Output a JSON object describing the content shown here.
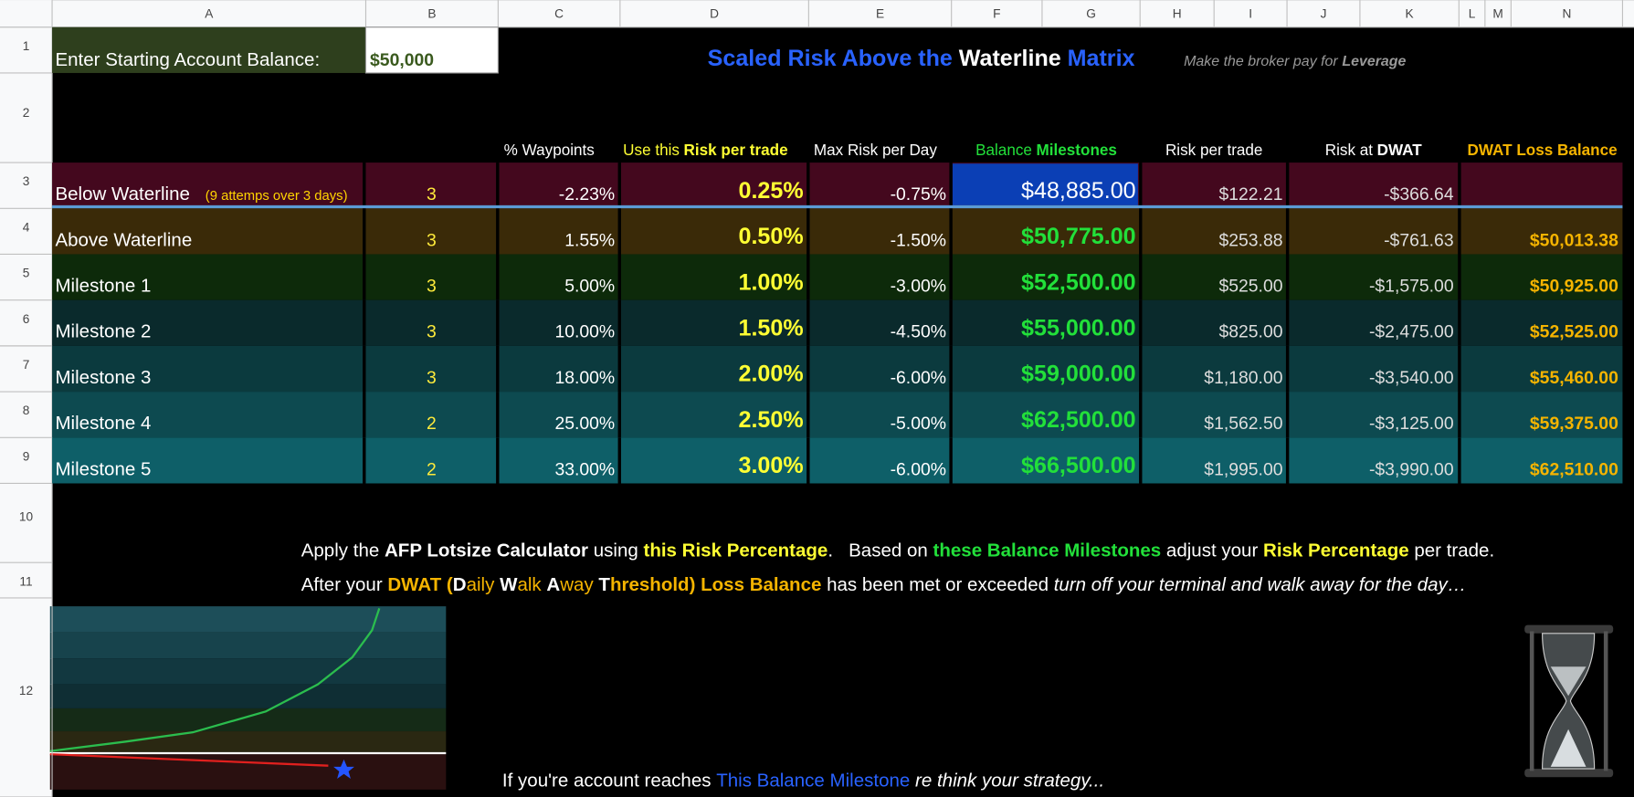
{
  "sheet": {
    "columns": [
      "A",
      "B",
      "C",
      "D",
      "E",
      "F",
      "G",
      "H",
      "I",
      "J",
      "K",
      "L",
      "M",
      "N"
    ],
    "rows": [
      "1",
      "2",
      "3",
      "4",
      "5",
      "6",
      "7",
      "8",
      "9",
      "10",
      "11",
      "12"
    ]
  },
  "balance": {
    "label": "Enter Starting Account Balance:",
    "value": "$50,000"
  },
  "title": [
    "Scaled Risk Above the",
    "Waterline",
    "Matrix"
  ],
  "subtitle": [
    "Make the broker pay for",
    "Leverage"
  ],
  "headers": {
    "waypoints": "% Waypoints",
    "risk": [
      "Use this",
      "Risk per trade"
    ],
    "max_day": "Max Risk per Day",
    "milestones": [
      "Balance",
      "Milestones"
    ],
    "risk_trade": "Risk per trade",
    "risk_dwat": [
      "Risk at",
      "DWAT"
    ],
    "dwat_loss": "DWAT Loss Balance"
  },
  "table": {
    "rows": [
      {
        "name": "Below Waterline",
        "note": "(9 attemps over 3 days)",
        "trades": "3",
        "waypoint": "-2.23%",
        "risk": "0.25%",
        "max_day": "-0.75%",
        "milestone": "$48,885.00",
        "risk_trade": "$122.21",
        "risk_dwat": "-$366.64"
      },
      {
        "name": "Above Waterline",
        "trades": "3",
        "waypoint": "1.55%",
        "risk": "0.50%",
        "max_day": "-1.50%",
        "milestone": "$50,775.00",
        "risk_trade": "$253.88",
        "risk_dwat": "-$761.63",
        "dwat_loss": "$50,013.38"
      },
      {
        "name": "Milestone 1",
        "trades": "3",
        "waypoint": "5.00%",
        "risk": "1.00%",
        "max_day": "-3.00%",
        "milestone": "$52,500.00",
        "risk_trade": "$525.00",
        "risk_dwat": "-$1,575.00",
        "dwat_loss": "$50,925.00"
      },
      {
        "name": "Milestone 2",
        "trades": "3",
        "waypoint": "10.00%",
        "risk": "1.50%",
        "max_day": "-4.50%",
        "milestone": "$55,000.00",
        "risk_trade": "$825.00",
        "risk_dwat": "-$2,475.00",
        "dwat_loss": "$52,525.00"
      },
      {
        "name": "Milestone 3",
        "trades": "3",
        "waypoint": "18.00%",
        "risk": "2.00%",
        "max_day": "-6.00%",
        "milestone": "$59,000.00",
        "risk_trade": "$1,180.00",
        "risk_dwat": "-$3,540.00",
        "dwat_loss": "$55,460.00"
      },
      {
        "name": "Milestone 4",
        "trades": "2",
        "waypoint": "25.00%",
        "risk": "2.50%",
        "max_day": "-5.00%",
        "milestone": "$62,500.00",
        "risk_trade": "$1,562.50",
        "risk_dwat": "-$3,125.00",
        "dwat_loss": "$59,375.00"
      },
      {
        "name": "Milestone 5",
        "trades": "2",
        "waypoint": "33.00%",
        "risk": "3.00%",
        "max_day": "-6.00%",
        "milestone": "$66,500.00",
        "risk_trade": "$1,995.00",
        "risk_dwat": "-$3,990.00",
        "dwat_loss": "$62,510.00"
      }
    ]
  },
  "notes": [
    [
      "Apply the ",
      "AFP Lotsize Calculator",
      " using ",
      "this Risk Percentage",
      ".   Based on ",
      "these Balance Milestones",
      " adjust your ",
      "Risk Percentage",
      " per trade."
    ],
    [
      "After your ",
      "DWAT (",
      "D",
      "aily ",
      "W",
      "alk ",
      "A",
      "way ",
      "T",
      "hreshold) Loss Balance",
      " has been met or exceeded ",
      "turn off your terminal and walk away for the day…"
    ],
    [
      "If you're account reaches ",
      "This Balance Milestone",
      " re think your strategy..."
    ]
  ]
}
